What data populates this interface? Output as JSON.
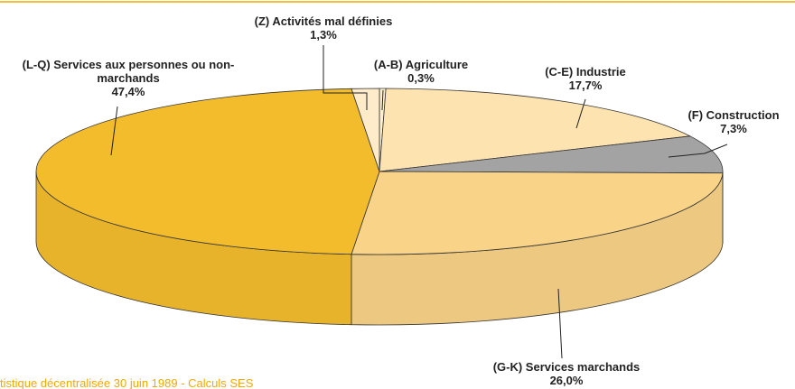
{
  "chart_data": {
    "type": "pie",
    "categories": [
      "(A-B) Agriculture",
      "(C-E) Industrie",
      "(F) Construction",
      "(G-K) Services marchands",
      "(L-Q) Services aux personnes ou non-marchands",
      "(Z) Activités mal définies"
    ],
    "values": [
      0.3,
      17.7,
      7.3,
      26.0,
      47.4,
      1.3
    ],
    "value_labels": [
      "0,3%",
      "17,7%",
      "7,3%",
      "26,0%",
      "47,4%",
      "1,3%"
    ],
    "colors": [
      "#fff1cf",
      "#fde3b0",
      "#a3a3a3",
      "#f8d388",
      "#f2bc2c",
      "#fdebc9"
    ],
    "source": "tistique décentralisée 30 juin 1989 - Calculs SES"
  }
}
